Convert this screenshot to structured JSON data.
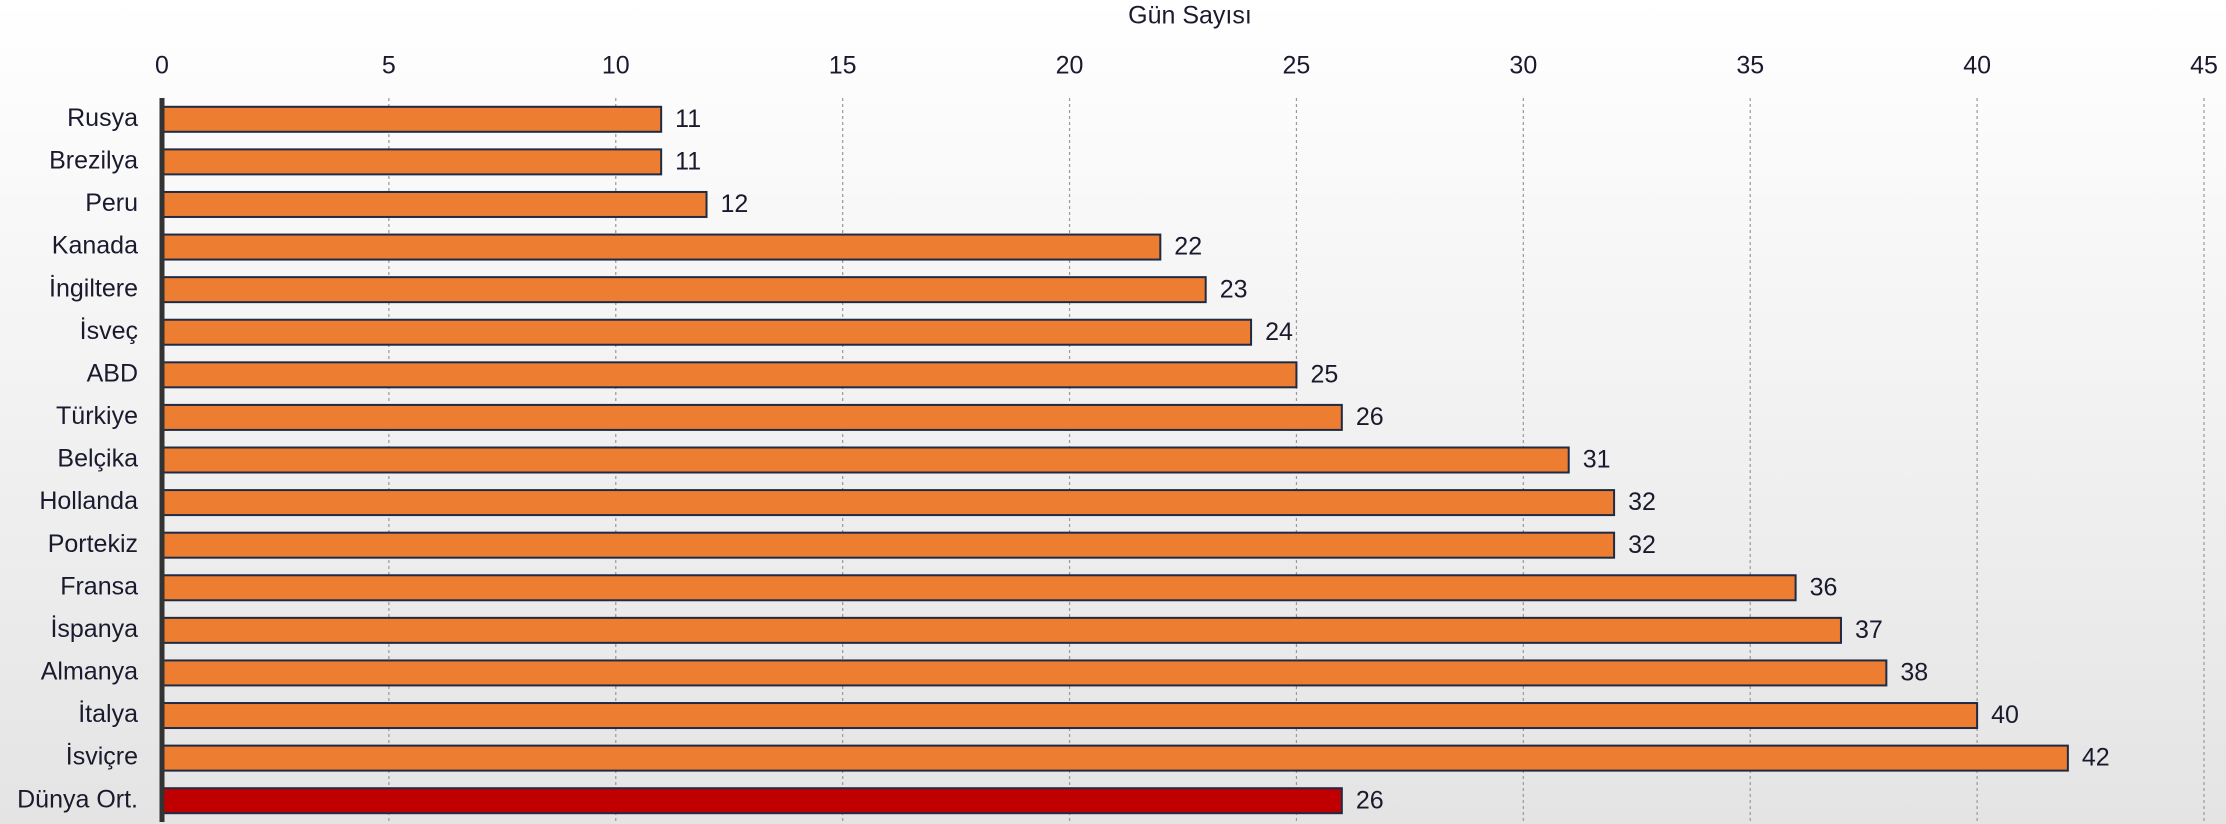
{
  "chart_data": {
    "type": "bar",
    "orientation": "horizontal",
    "x_label": "Gün Sayısı",
    "categories": [
      "Rusya",
      "Brezilya",
      "Peru",
      "Kanada",
      "İngiltere",
      "İsveç",
      "ABD",
      "Türkiye",
      "Belçika",
      "Hollanda",
      "Portekiz",
      "Fransa",
      "İspanya",
      "Almanya",
      "İtalya",
      "İsviçre",
      "Dünya Ort."
    ],
    "values": [
      11,
      11,
      12,
      22,
      23,
      24,
      25,
      26,
      31,
      32,
      32,
      36,
      37,
      38,
      40,
      42,
      26
    ],
    "colors": [
      "#ed7d31",
      "#ed7d31",
      "#ed7d31",
      "#ed7d31",
      "#ed7d31",
      "#ed7d31",
      "#ed7d31",
      "#ed7d31",
      "#ed7d31",
      "#ed7d31",
      "#ed7d31",
      "#ed7d31",
      "#ed7d31",
      "#ed7d31",
      "#ed7d31",
      "#ed7d31",
      "#c00000"
    ],
    "xlim": [
      0,
      45
    ],
    "xticks": [
      0,
      5,
      10,
      15,
      20,
      25,
      30,
      35,
      40,
      45
    ],
    "grid": true
  }
}
